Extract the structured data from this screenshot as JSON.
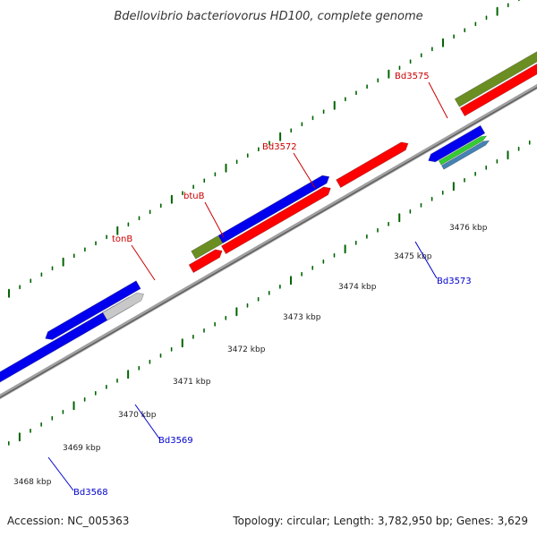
{
  "title": "Bdellovibrio bacteriovorus HD100, complete genome",
  "footer": {
    "accession": "Accession: NC_005363",
    "summary": "Topology: circular; Length: 3,782,950 bp; Genes: 3,629"
  },
  "colors": {
    "blue": "#0000ee",
    "red": "#ff0000",
    "olive": "#6b8e23",
    "grey": "#c8c8c8",
    "green": "#33cc33",
    "steel": "#4682b4",
    "tick": "#006400",
    "backbone": "#808080",
    "top_label": "#cc0000",
    "bottom_label": "#0000cc"
  },
  "ticks": [
    "3468 kbp",
    "3469 kbp",
    "3470 kbp",
    "3471 kbp",
    "3472 kbp",
    "3473 kbp",
    "3474 kbp",
    "3475 kbp",
    "3476 kbp"
  ],
  "gene_labels": {
    "top": [
      "tonB",
      "btuB",
      "Bd3572",
      "Bd3575"
    ],
    "bottom": [
      "Bd3568",
      "Bd3569",
      "Bd3573"
    ]
  }
}
